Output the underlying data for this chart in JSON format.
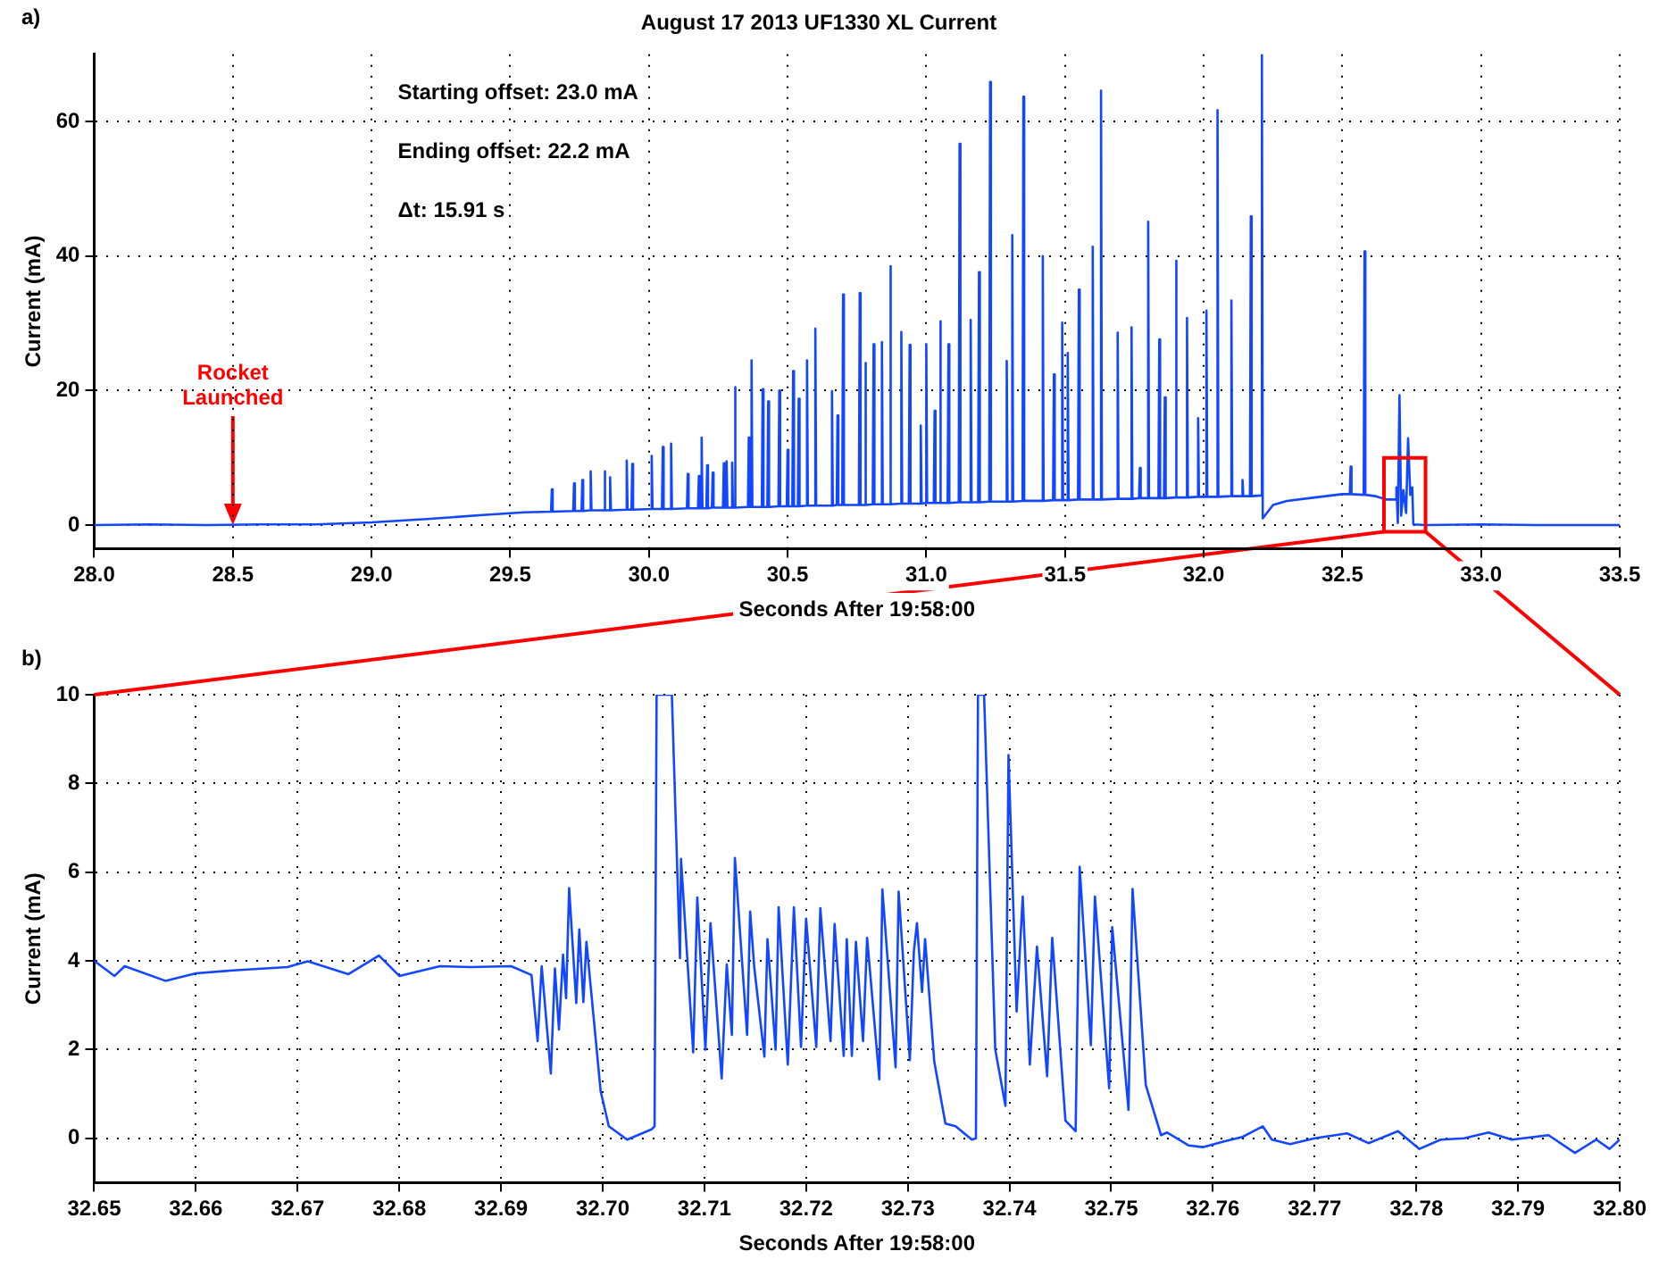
{
  "chart_data": [
    {
      "type": "line",
      "title": "August 17 2013 UF1330 XL Current",
      "xlabel": "Seconds After 19:58:00",
      "ylabel": "Current (mA)",
      "xlim": [
        28,
        33.5
      ],
      "ylim": [
        -3.5,
        70
      ],
      "xticks": [
        {
          "value": 28,
          "label": "28.0"
        },
        {
          "value": 28.5,
          "label": "28.5"
        },
        {
          "value": 29,
          "label": "29.0"
        },
        {
          "value": 29.5,
          "label": "29.5"
        },
        {
          "value": 30,
          "label": "30.0"
        },
        {
          "value": 30.5,
          "label": "30.5"
        },
        {
          "value": 31,
          "label": "31.0"
        },
        {
          "value": 31.5,
          "label": "31.5"
        },
        {
          "value": 32,
          "label": "32.0"
        },
        {
          "value": 32.5,
          "label": "32.5"
        },
        {
          "value": 33,
          "label": "33.0"
        },
        {
          "value": 33.5,
          "label": "33.5"
        }
      ],
      "yticks": [
        0,
        20,
        40,
        60
      ],
      "grid": true,
      "marker": "none",
      "line_style": "solid",
      "annotations": [
        "a)",
        "Starting offset: 23.0 mA",
        "Ending offset: 22.2 mA",
        "Δt: 15.91 s",
        {
          "text": "Rocket Launched",
          "x": 28.5,
          "y": 0
        }
      ],
      "series": [
        {
          "color": "#1246ff",
          "x": [
            28.0,
            28.2,
            28.4,
            28.6,
            28.8,
            29.0,
            29.2,
            29.4,
            29.55,
            29.647,
            29.65,
            29.653,
            29.727,
            29.73,
            29.733,
            29.757,
            29.76,
            29.763,
            29.787,
            29.79,
            29.793,
            29.837,
            29.84,
            29.843,
            29.857,
            29.86,
            29.863,
            29.917,
            29.92,
            29.923,
            29.937,
            29.94,
            29.943,
            30.007,
            30.01,
            30.013,
            30.047,
            30.05,
            30.053,
            30.077,
            30.08,
            30.083,
            30.137,
            30.14,
            30.143,
            30.177,
            30.18,
            30.183,
            30.187,
            30.19,
            30.193,
            30.207,
            30.21,
            30.213,
            30.227,
            30.23,
            30.233,
            30.267,
            30.27,
            30.273,
            30.277,
            30.28,
            30.283,
            30.297,
            30.3,
            30.303,
            30.307,
            30.31,
            30.313,
            30.357,
            30.36,
            30.363,
            30.367,
            30.37,
            30.373,
            30.407,
            30.41,
            30.413,
            30.427,
            30.43,
            30.433,
            30.467,
            30.47,
            30.473,
            30.497,
            30.5,
            30.503,
            30.517,
            30.52,
            30.523,
            30.537,
            30.54,
            30.543,
            30.567,
            30.57,
            30.573,
            30.597,
            30.6,
            30.603,
            30.657,
            30.66,
            30.663,
            30.677,
            30.68,
            30.683,
            30.697,
            30.7,
            30.703,
            30.757,
            30.76,
            30.763,
            30.777,
            30.78,
            30.783,
            30.807,
            30.81,
            30.813,
            30.837,
            30.84,
            30.843,
            30.867,
            30.87,
            30.873,
            30.907,
            30.91,
            30.913,
            30.937,
            30.94,
            30.943,
            30.977,
            30.98,
            30.983,
            30.997,
            31.0,
            31.003,
            31.027,
            31.03,
            31.033,
            31.047,
            31.05,
            31.053,
            31.077,
            31.08,
            31.083,
            31.117,
            31.12,
            31.123,
            31.157,
            31.16,
            31.163,
            31.187,
            31.19,
            31.193,
            31.227,
            31.23,
            31.233,
            31.287,
            31.29,
            31.293,
            31.307,
            31.31,
            31.313,
            31.347,
            31.35,
            31.353,
            31.417,
            31.42,
            31.423,
            31.457,
            31.46,
            31.463,
            31.487,
            31.49,
            31.493,
            31.507,
            31.51,
            31.513,
            31.547,
            31.55,
            31.553,
            31.597,
            31.6,
            31.603,
            31.627,
            31.63,
            31.633,
            31.687,
            31.69,
            31.693,
            31.737,
            31.74,
            31.743,
            31.767,
            31.77,
            31.773,
            31.797,
            31.8,
            31.803,
            31.837,
            31.84,
            31.843,
            31.857,
            31.86,
            31.863,
            31.897,
            31.9,
            31.903,
            31.937,
            31.94,
            31.943,
            31.977,
            31.98,
            31.983,
            32.007,
            32.01,
            32.013,
            32.047,
            32.05,
            32.053,
            32.097,
            32.1,
            32.103,
            32.137,
            32.14,
            32.143,
            32.167,
            32.17,
            32.173,
            32.207,
            32.21,
            32.213,
            32.25,
            32.3,
            32.4,
            32.5,
            32.527,
            32.53,
            32.533,
            32.577,
            32.58,
            32.583,
            32.62,
            32.66,
            32.69,
            32.695,
            32.7,
            32.706,
            32.712,
            32.72,
            32.73,
            32.737,
            32.745,
            32.752,
            32.756,
            32.8,
            33.0,
            33.2,
            33.5
          ],
          "values": [
            0,
            0.1,
            0,
            0.1,
            0.1,
            0.4,
            0.9,
            1.5,
            1.9,
            2.0,
            5.3,
            2.0,
            2.1,
            6.2,
            2.1,
            2.1,
            6.7,
            2.1,
            2.2,
            8.0,
            2.2,
            2.2,
            8.0,
            2.2,
            2.2,
            7.1,
            2.2,
            2.3,
            9.6,
            2.3,
            2.3,
            9.1,
            2.3,
            2.4,
            10.3,
            2.4,
            2.4,
            11.6,
            2.4,
            2.4,
            12.1,
            2.4,
            2.5,
            7.6,
            2.5,
            2.5,
            7.3,
            2.5,
            2.5,
            13.0,
            2.5,
            2.5,
            8.9,
            2.5,
            2.6,
            7.8,
            2.6,
            2.6,
            9.2,
            2.6,
            2.6,
            9.5,
            2.6,
            2.6,
            9.3,
            2.6,
            2.6,
            20.5,
            2.6,
            2.7,
            13.0,
            2.7,
            2.7,
            24.5,
            2.7,
            2.7,
            20.2,
            2.7,
            2.7,
            18.4,
            2.7,
            2.8,
            20.0,
            2.8,
            2.8,
            11.2,
            2.8,
            2.8,
            22.9,
            2.8,
            2.8,
            18.8,
            2.8,
            2.9,
            24.5,
            2.9,
            2.9,
            29.2,
            2.9,
            2.9,
            19.9,
            2.9,
            3.0,
            16.3,
            3.0,
            3.0,
            34.3,
            3.0,
            3.0,
            34.5,
            3.0,
            3.0,
            24.1,
            3.0,
            3.1,
            26.9,
            3.1,
            3.1,
            27.2,
            3.1,
            3.1,
            38.5,
            3.1,
            3.2,
            28.7,
            3.2,
            3.2,
            26.8,
            3.2,
            3.2,
            14.8,
            3.2,
            3.3,
            26.9,
            3.3,
            3.3,
            17.0,
            3.3,
            3.3,
            30.3,
            3.3,
            3.3,
            26.9,
            3.3,
            3.4,
            56.7,
            3.4,
            3.4,
            30.5,
            3.4,
            3.4,
            37.6,
            3.4,
            3.5,
            65.9,
            3.5,
            3.5,
            24.4,
            3.5,
            3.5,
            43.1,
            3.5,
            3.6,
            63.7,
            3.6,
            3.6,
            40.0,
            3.6,
            3.7,
            22.4,
            3.7,
            3.7,
            30.1,
            3.7,
            3.7,
            25.6,
            3.7,
            3.8,
            35.0,
            3.8,
            3.8,
            41.4,
            3.8,
            3.8,
            64.6,
            3.8,
            3.9,
            28.6,
            3.9,
            3.9,
            29.4,
            3.9,
            4.0,
            8.5,
            4.0,
            4.0,
            45.1,
            4.0,
            4.0,
            27.6,
            4.0,
            4.0,
            19.0,
            4.0,
            4.1,
            39.3,
            4.1,
            4.1,
            30.8,
            4.1,
            4.2,
            15.9,
            4.2,
            4.2,
            31.9,
            4.2,
            4.2,
            61.7,
            4.2,
            4.3,
            33.4,
            4.3,
            4.3,
            6.7,
            4.3,
            4.3,
            45.9,
            4.3,
            4.4,
            70,
            1.0,
            3.0,
            3.6,
            4.1,
            4.6,
            4.6,
            8.7,
            4.6,
            4.5,
            40.7,
            4.5,
            4.3,
            3.8,
            3.8,
            5.6,
            0.3,
            19.3,
            1.4,
            5.2,
            1.8,
            12.9,
            4.5,
            5.6,
            0.1,
            0,
            0.1,
            0,
            0
          ]
        }
      ]
    },
    {
      "type": "line",
      "xlabel": "Seconds After 19:58:00",
      "ylabel": "Current (mA)",
      "xlim": [
        32.65,
        32.8
      ],
      "ylim": [
        -1,
        10
      ],
      "xticks": [
        {
          "value": 32.65,
          "label": "32.65"
        },
        {
          "value": 32.66,
          "label": "32.66"
        },
        {
          "value": 32.67,
          "label": "32.67"
        },
        {
          "value": 32.68,
          "label": "32.68"
        },
        {
          "value": 32.69,
          "label": "32.69"
        },
        {
          "value": 32.7,
          "label": "32.70"
        },
        {
          "value": 32.71,
          "label": "32.71"
        },
        {
          "value": 32.72,
          "label": "32.72"
        },
        {
          "value": 32.73,
          "label": "32.73"
        },
        {
          "value": 32.74,
          "label": "32.74"
        },
        {
          "value": 32.75,
          "label": "32.75"
        },
        {
          "value": 32.76,
          "label": "32.76"
        },
        {
          "value": 32.77,
          "label": "32.77"
        },
        {
          "value": 32.78,
          "label": "32.78"
        },
        {
          "value": 32.79,
          "label": "32.79"
        },
        {
          "value": 32.8,
          "label": "32.80"
        }
      ],
      "yticks": [
        0,
        2,
        4,
        6,
        8,
        10
      ],
      "grid": true,
      "marker": "none",
      "line_style": "solid",
      "annotations": [
        "b)"
      ],
      "series": [
        {
          "color": "#1246ff",
          "x": [
            32.65,
            32.652,
            32.653,
            32.657,
            32.66,
            32.664,
            32.669,
            32.671,
            32.675,
            32.678,
            32.68,
            32.684,
            32.687,
            32.691,
            32.693,
            32.6936,
            32.694,
            32.6949,
            32.6953,
            32.6957,
            32.6961,
            32.6964,
            32.6967,
            32.6974,
            32.6977,
            32.6981,
            32.6984,
            32.6998,
            32.7006,
            32.7024,
            32.7048,
            32.7051,
            32.7053,
            32.7068,
            32.7076,
            32.7077,
            32.7089,
            32.7093,
            32.7101,
            32.7106,
            32.7117,
            32.7122,
            32.7127,
            32.713,
            32.7142,
            32.7145,
            32.7149,
            32.7159,
            32.7162,
            32.717,
            32.7173,
            32.7182,
            32.7188,
            32.7195,
            32.72,
            32.721,
            32.7214,
            32.7224,
            32.7228,
            32.7237,
            32.724,
            32.7245,
            32.7249,
            32.7256,
            32.726,
            32.7272,
            32.7275,
            32.7288,
            32.7291,
            32.7302,
            32.7306,
            32.7309,
            32.7314,
            32.7317,
            32.7326,
            32.7337,
            32.7347,
            32.7363,
            32.7367,
            32.7369,
            32.7375,
            32.7386,
            32.7396,
            32.7399,
            32.7407,
            32.7413,
            32.742,
            32.7427,
            32.7437,
            32.7442,
            32.7455,
            32.7465,
            32.7469,
            32.748,
            32.7484,
            32.7498,
            32.7501,
            32.7517,
            32.7521,
            32.7534,
            32.7549,
            32.7555,
            32.7576,
            32.759,
            32.7611,
            32.7629,
            32.7649,
            32.7658,
            32.7676,
            32.77,
            32.7732,
            32.7753,
            32.7782,
            32.7803,
            32.7824,
            32.7847,
            32.7871,
            32.7894,
            32.793,
            32.7956,
            32.7977,
            32.799,
            32.8
          ],
          "values": [
            4.0,
            3.66,
            3.88,
            3.55,
            3.72,
            3.79,
            3.86,
            3.99,
            3.7,
            4.12,
            3.66,
            3.88,
            3.86,
            3.88,
            3.68,
            2.19,
            3.88,
            1.46,
            3.83,
            2.45,
            4.14,
            3.16,
            5.64,
            3.05,
            4.71,
            3.07,
            4.43,
            1.06,
            0.27,
            -0.03,
            0.2,
            0.27,
            10,
            10,
            4.06,
            6.3,
            1.94,
            5.43,
            2.0,
            4.85,
            1.35,
            3.92,
            2.33,
            6.32,
            2.33,
            5.11,
            3.86,
            1.84,
            4.49,
            2.0,
            5.21,
            1.66,
            5.21,
            2.06,
            4.95,
            2.06,
            5.19,
            2.19,
            4.83,
            1.86,
            4.49,
            1.86,
            4.43,
            2.19,
            4.52,
            1.33,
            5.61,
            1.6,
            5.56,
            1.76,
            4.23,
            4.85,
            3.3,
            4.49,
            1.73,
            0.33,
            0.27,
            -0.03,
            0,
            10,
            10,
            2.0,
            0.73,
            8.64,
            2.86,
            5.45,
            1.66,
            4.32,
            1.4,
            4.52,
            0.4,
            0.16,
            6.12,
            2.1,
            5.45,
            1.13,
            4.76,
            0.64,
            5.62,
            1.2,
            0.07,
            0.13,
            -0.16,
            -0.2,
            -0.07,
            0.03,
            0.27,
            -0.03,
            -0.13,
            0,
            0.11,
            -0.11,
            0.16,
            -0.24,
            -0.03,
            0,
            0.13,
            -0.03,
            0.07,
            -0.33,
            -0.03,
            -0.24,
            -0.03
          ]
        }
      ]
    }
  ]
}
